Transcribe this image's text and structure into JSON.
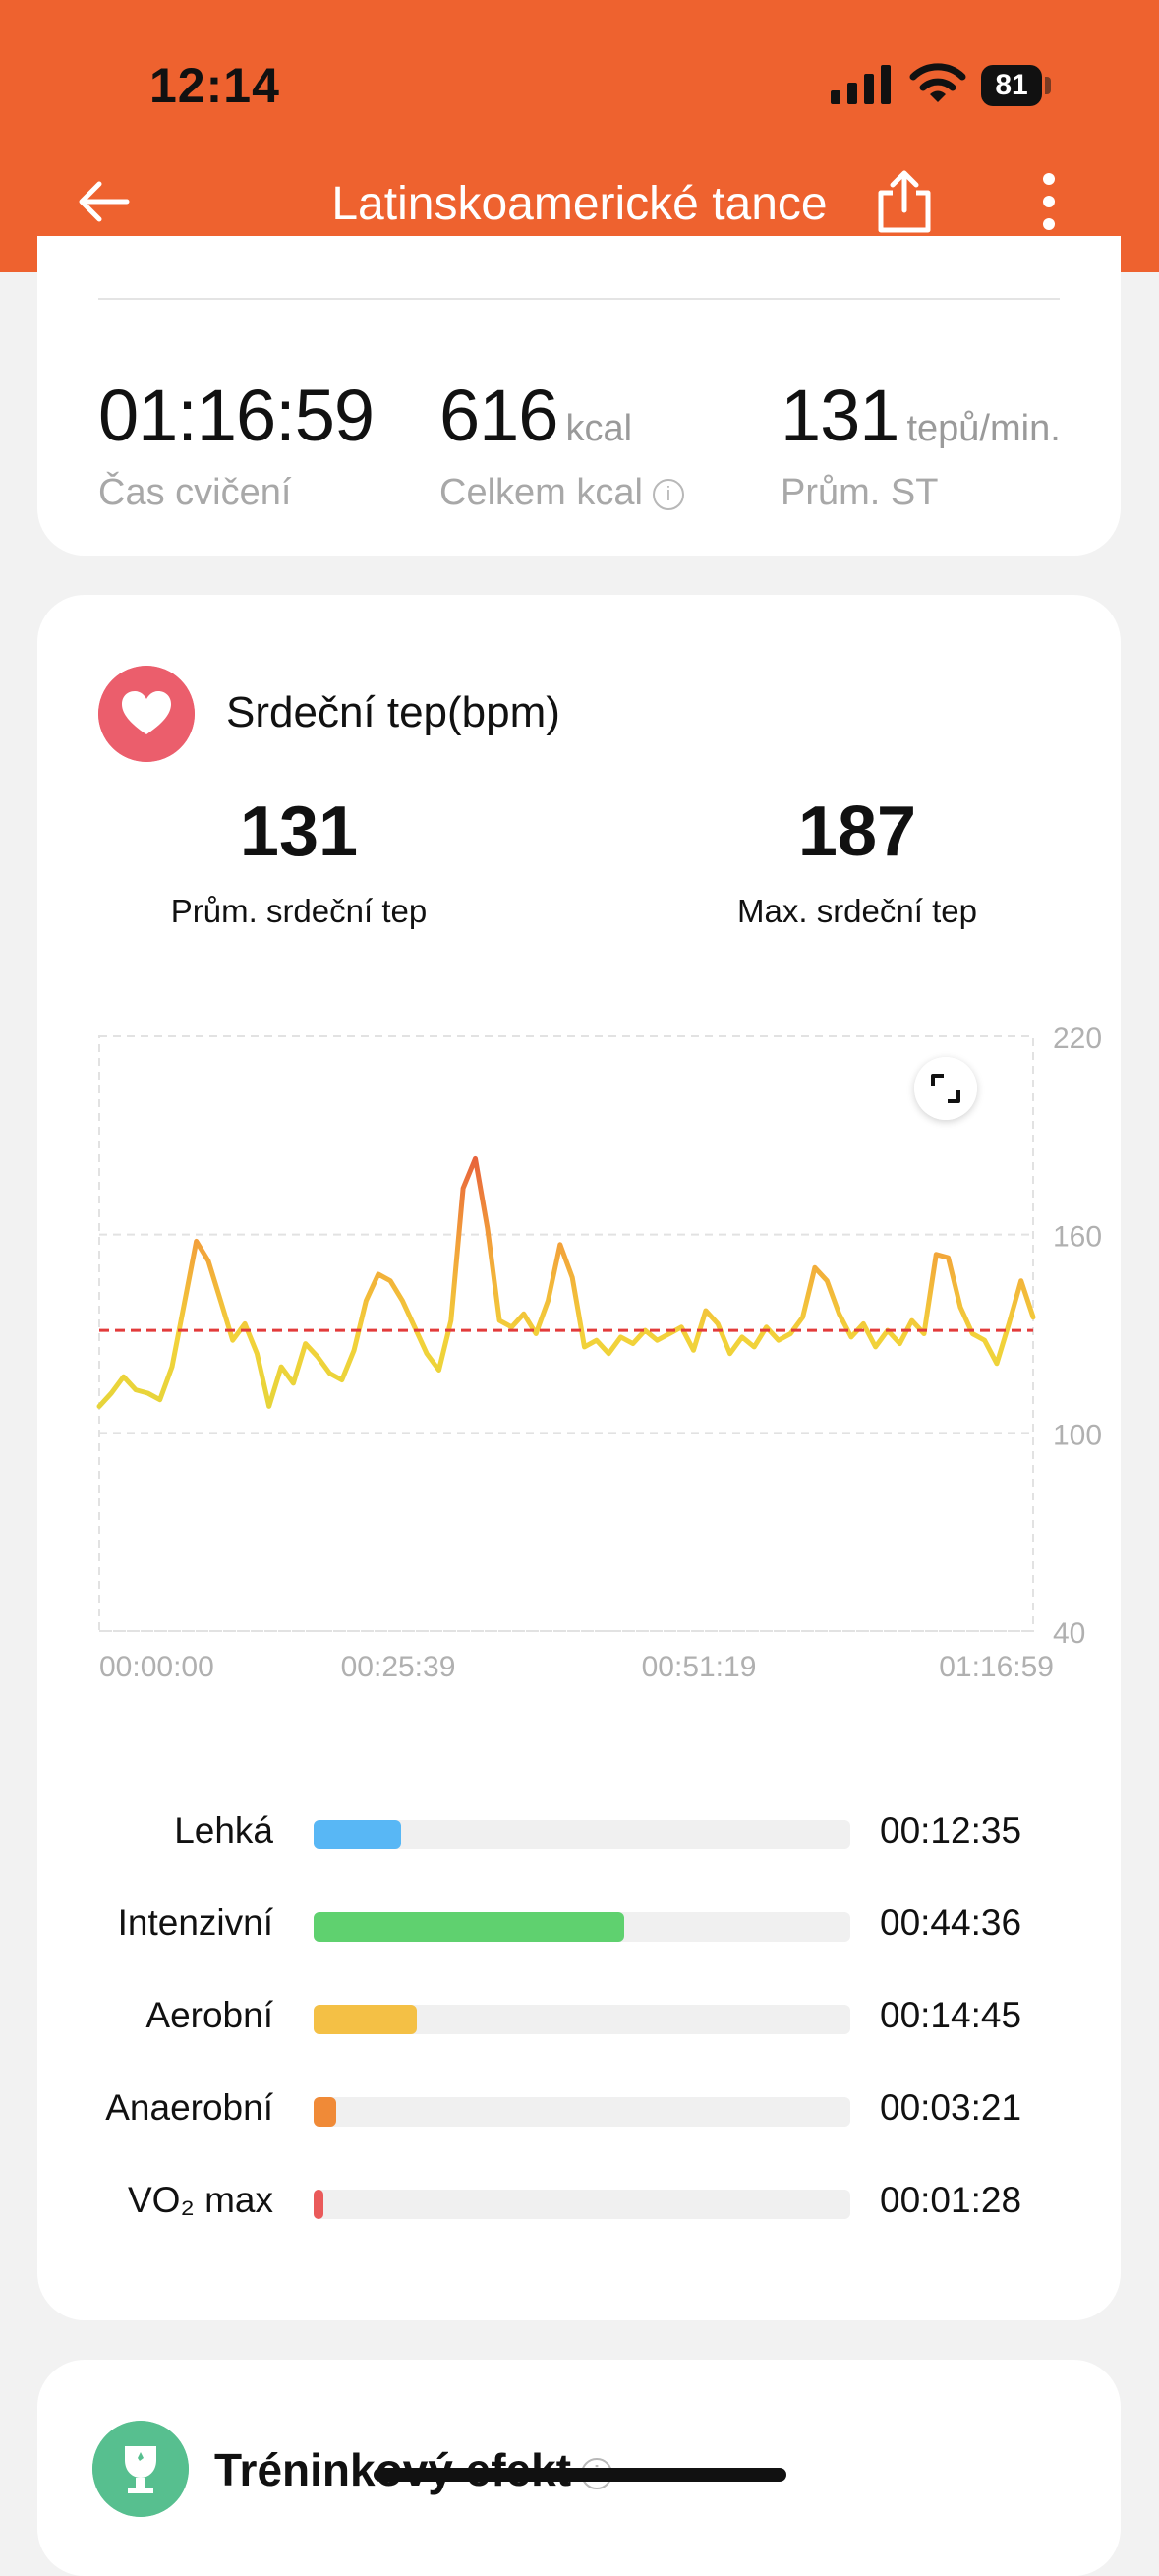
{
  "status_bar": {
    "time": "12:14",
    "battery": "81"
  },
  "header": {
    "title": "Latinskoamerické tance"
  },
  "summary": {
    "duration": {
      "value": "01:16:59",
      "label": "Čas cvičení"
    },
    "calories": {
      "value": "616",
      "unit": "kcal",
      "label": "Celkem kcal"
    },
    "avg_hr": {
      "value": "131",
      "unit": "tepů/min.",
      "label": "Prům. ST"
    }
  },
  "heart": {
    "title": "Srdeční tep(bpm)",
    "avg_value": "131",
    "avg_label": "Prům. srdeční tep",
    "max_value": "187",
    "max_label": "Max. srdeční tep"
  },
  "chart_data": {
    "type": "line",
    "ylim": [
      40,
      220
    ],
    "y_ticks": [
      "220",
      "160",
      "100",
      "40"
    ],
    "x_ticks": [
      "00:00:00",
      "00:25:39",
      "00:51:19",
      "01:16:59"
    ],
    "average_line": 131,
    "x_minutes": [
      0,
      1,
      2,
      3,
      4,
      5,
      6,
      7,
      8,
      9,
      10,
      11,
      12,
      13,
      14,
      15,
      16,
      17,
      18,
      19,
      20,
      21,
      22,
      23,
      24,
      25,
      26,
      27,
      28,
      29,
      30,
      31,
      32,
      33,
      34,
      35,
      36,
      37,
      38,
      39,
      40,
      41,
      42,
      43,
      44,
      45,
      46,
      47,
      48,
      49,
      50,
      51,
      52,
      53,
      54,
      55,
      56,
      57,
      58,
      59,
      60,
      61,
      62,
      63,
      64,
      65,
      66,
      67,
      68,
      69,
      70,
      71,
      72,
      73,
      74,
      75,
      76,
      77
    ],
    "values": [
      108,
      112,
      117,
      113,
      112,
      110,
      120,
      139,
      158,
      152,
      140,
      128,
      133,
      124,
      108,
      120,
      115,
      127,
      123,
      118,
      116,
      125,
      140,
      148,
      146,
      140,
      132,
      124,
      119,
      134,
      174,
      183,
      162,
      134,
      132,
      136,
      130,
      140,
      157,
      147,
      126,
      128,
      124,
      129,
      127,
      131,
      128,
      130,
      132,
      125,
      137,
      133,
      124,
      129,
      126,
      132,
      128,
      130,
      135,
      150,
      146,
      136,
      129,
      133,
      126,
      131,
      127,
      134,
      130,
      154,
      153,
      138,
      130,
      128,
      121,
      133,
      146,
      135
    ]
  },
  "zones": [
    {
      "label": "Lehká",
      "time": "00:12:35",
      "fraction": 0.163,
      "color": "#58b7f5"
    },
    {
      "label": "Intenzivní",
      "time": "00:44:36",
      "fraction": 0.579,
      "color": "#5fd16f"
    },
    {
      "label": "Aerobní",
      "time": "00:14:45",
      "fraction": 0.192,
      "color": "#f4c045"
    },
    {
      "label": "Anaerobní",
      "time": "00:03:21",
      "fraction": 0.043,
      "color": "#f08a37"
    },
    {
      "label": "VO₂ max",
      "time": "00:01:28",
      "fraction": 0.019,
      "color": "#ea5a5a"
    }
  ],
  "training_effect": {
    "title": "Tréninkový efekt"
  },
  "icons": [
    "back-arrow-icon",
    "share-icon",
    "more-vertical-icon",
    "heart-icon",
    "info-icon",
    "expand-icon",
    "trophy-icon"
  ],
  "colors": {
    "header": "#ee622f",
    "heart_badge": "#eb5e6c",
    "effect_badge": "#57bf8f",
    "avg_line": "#e23b3b"
  }
}
